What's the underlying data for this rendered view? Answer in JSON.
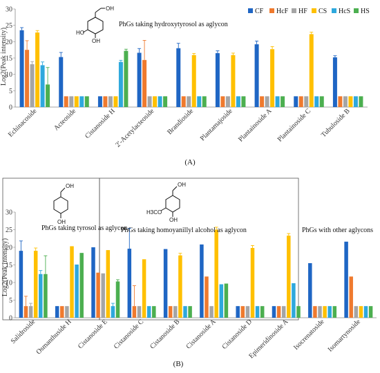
{
  "colors": {
    "CF": "#1f66c4",
    "HcF": "#ef7a2e",
    "HF": "#a5a5a5",
    "CS": "#ffc000",
    "HcS": "#2ea8dd",
    "HS": "#4caf50"
  },
  "chart_data": [
    {
      "type": "bar",
      "panel_label": "(A)",
      "ylabel": "Log2(Peak intensity)",
      "ylim": [
        0,
        30
      ],
      "yticks": [
        0,
        5,
        10,
        15,
        20,
        25,
        30
      ],
      "legend": [
        "CF",
        "HcF",
        "HF",
        "CS",
        "HcS",
        "HS"
      ],
      "legend_position": "top-right",
      "annotations": [
        "PhGs taking hydroxytyrosol as aglycon"
      ],
      "structure_labels": [
        "HO",
        "OH",
        "OH"
      ],
      "categories": [
        "Echinacoside",
        "Acteoside",
        "Cistanoside H",
        "2'-Acetylacteoside",
        "Brandioside",
        "Plantamajoside",
        "Plantainoside A",
        "Plantainoside C",
        "Tubuloside B"
      ],
      "series": [
        {
          "name": "CF",
          "values": [
            23.5,
            15.3,
            3.3,
            16.6,
            18.0,
            16.5,
            19.2,
            3.3,
            15.2
          ],
          "errors": [
            0.8,
            1.4,
            0,
            1.3,
            1.5,
            0.7,
            1.0,
            0,
            0.5
          ]
        },
        {
          "name": "HcF",
          "values": [
            17.5,
            3.3,
            3.3,
            14.4,
            3.3,
            3.3,
            3.3,
            3.3,
            3.3
          ],
          "errors": [
            2.8,
            0,
            0,
            6.0,
            0,
            0,
            0,
            0,
            0
          ]
        },
        {
          "name": "HF",
          "values": [
            13.1,
            3.3,
            3.3,
            3.3,
            3.3,
            3.3,
            3.3,
            3.3,
            3.3
          ],
          "errors": [
            0.8,
            0,
            0,
            0,
            0,
            0,
            0,
            0,
            0
          ]
        },
        {
          "name": "CS",
          "values": [
            22.8,
            3.3,
            3.3,
            3.3,
            15.9,
            15.9,
            17.7,
            22.3,
            3.3
          ],
          "errors": [
            0.6,
            0,
            0,
            0,
            0.5,
            0.6,
            0.8,
            0.6,
            0
          ]
        },
        {
          "name": "HcS",
          "values": [
            12.8,
            3.3,
            13.8,
            3.3,
            3.3,
            3.3,
            3.3,
            3.3,
            3.3
          ],
          "errors": [
            1.0,
            0,
            0.5,
            0,
            0,
            0,
            0,
            0,
            0
          ]
        },
        {
          "name": "HS",
          "values": [
            6.9,
            3.3,
            17.2,
            3.3,
            3.3,
            3.3,
            3.3,
            3.3,
            3.3
          ],
          "errors": [
            5.2,
            0,
            0.5,
            0,
            0,
            0,
            0,
            0,
            0
          ]
        }
      ]
    },
    {
      "type": "bar",
      "panel_label": "(B)",
      "ylabel": "Log2(Peak intensity)",
      "ylim": [
        0,
        30
      ],
      "yticks": [
        0,
        5,
        10,
        15,
        20,
        25,
        30
      ],
      "annotations": [
        "PhGs taking tyrosol as aglycon",
        "PhGs taking homoyanillyl alcohol as aglycon",
        "PhGs with other aglycons"
      ],
      "structure_labels": [
        "OH",
        "OH",
        "OH",
        "H3CO",
        "OH"
      ],
      "categories": [
        "Salidroside",
        "Osmanthuside H",
        "Cistanoside E",
        "Cistanoside C",
        "Cistanoside B",
        "Cistanoside A",
        "Cistanoside D",
        "Epimeridinoside A",
        "Isocrenatoside",
        "Isomartynoside"
      ],
      "series": [
        {
          "name": "CF",
          "values": [
            19.0,
            3.3,
            20.0,
            19.6,
            19.5,
            20.8,
            3.3,
            3.3,
            15.5,
            21.6
          ],
          "errors": [
            2.8,
            0,
            0,
            5.8,
            0,
            0,
            0,
            0,
            0,
            0
          ]
        },
        {
          "name": "HcF",
          "values": [
            3.3,
            3.3,
            12.8,
            3.3,
            3.3,
            11.7,
            3.3,
            3.3,
            3.3,
            11.7
          ],
          "errors": [
            2.8,
            0,
            0,
            5.8,
            0,
            0,
            0,
            0,
            0,
            0
          ]
        },
        {
          "name": "HF",
          "values": [
            3.3,
            3.3,
            12.6,
            3.3,
            3.3,
            3.3,
            3.3,
            3.3,
            3.3,
            3.3
          ],
          "errors": [
            0.8,
            0,
            0,
            0,
            0,
            0,
            0,
            0,
            0,
            0
          ]
        },
        {
          "name": "CS",
          "values": [
            19.0,
            20.3,
            19.2,
            16.6,
            17.7,
            25.0,
            19.8,
            23.3,
            3.3,
            3.3
          ],
          "errors": [
            0.8,
            0,
            0,
            0,
            0.6,
            0.7,
            0.7,
            0.6,
            0,
            0
          ]
        },
        {
          "name": "HcS",
          "values": [
            12.4,
            15.1,
            3.3,
            3.3,
            3.3,
            9.5,
            3.3,
            9.8,
            3.3,
            3.3
          ],
          "errors": [
            1.0,
            0,
            0.8,
            0,
            0,
            0,
            0,
            0,
            0,
            0
          ]
        },
        {
          "name": "HS",
          "values": [
            12.4,
            18.4,
            10.3,
            3.3,
            3.3,
            9.7,
            3.3,
            3.3,
            3.3,
            3.3
          ],
          "errors": [
            5.2,
            0,
            0.5,
            0,
            0,
            0,
            0,
            0,
            0,
            0
          ]
        }
      ]
    }
  ]
}
